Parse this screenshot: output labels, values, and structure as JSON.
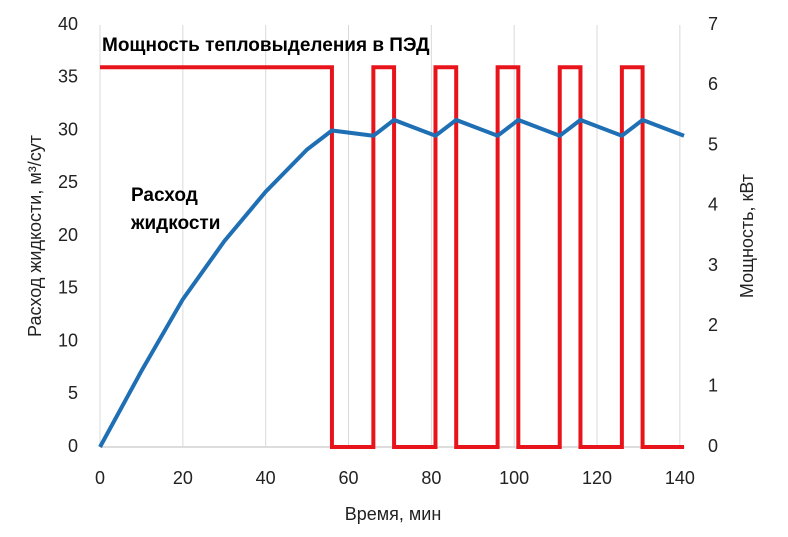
{
  "chart_data": {
    "type": "line",
    "annotations": [
      "Мощность тепловыделения в ПЭД",
      "Расход",
      "жидкости"
    ],
    "xlabel": "Время, мин",
    "ylabel": "Расход жидкости, м³/сут",
    "y2label": "Мощность, кВт",
    "xlim": [
      0,
      141
    ],
    "xticks": [
      0,
      20,
      40,
      60,
      80,
      100,
      120,
      140
    ],
    "ylim": [
      0,
      40
    ],
    "yticks": [
      0,
      5,
      10,
      15,
      20,
      25,
      30,
      35,
      40
    ],
    "y2lim": [
      0,
      7
    ],
    "y2ticks": [
      0,
      1,
      2,
      3,
      4,
      5,
      6,
      7
    ],
    "xgrid": true,
    "series": [
      {
        "name": "Расход жидкости",
        "color": "#1f6fb5",
        "axis": "y",
        "x": [
          0,
          10,
          20,
          30,
          40,
          50,
          56,
          66,
          71,
          81,
          86,
          96,
          101,
          111,
          116,
          126,
          131,
          141
        ],
        "values": [
          0,
          7.2,
          14,
          19.5,
          24.2,
          28.2,
          30,
          29.5,
          31,
          29.5,
          31,
          29.5,
          31,
          29.5,
          31,
          29.5,
          31,
          29.5
        ]
      },
      {
        "name": "Мощность тепловыделения в ПЭД",
        "color": "#e8141b",
        "axis": "y2",
        "x": [
          0,
          56,
          56,
          66,
          66,
          71,
          71,
          81,
          81,
          86,
          86,
          96,
          96,
          101,
          101,
          111,
          111,
          116,
          116,
          126,
          126,
          131,
          131,
          141
        ],
        "values": [
          6.3,
          6.3,
          0,
          0,
          6.3,
          6.3,
          0,
          0,
          6.3,
          6.3,
          0,
          0,
          6.3,
          6.3,
          0,
          0,
          6.3,
          6.3,
          0,
          0,
          6.3,
          6.3,
          0,
          0
        ]
      }
    ]
  }
}
